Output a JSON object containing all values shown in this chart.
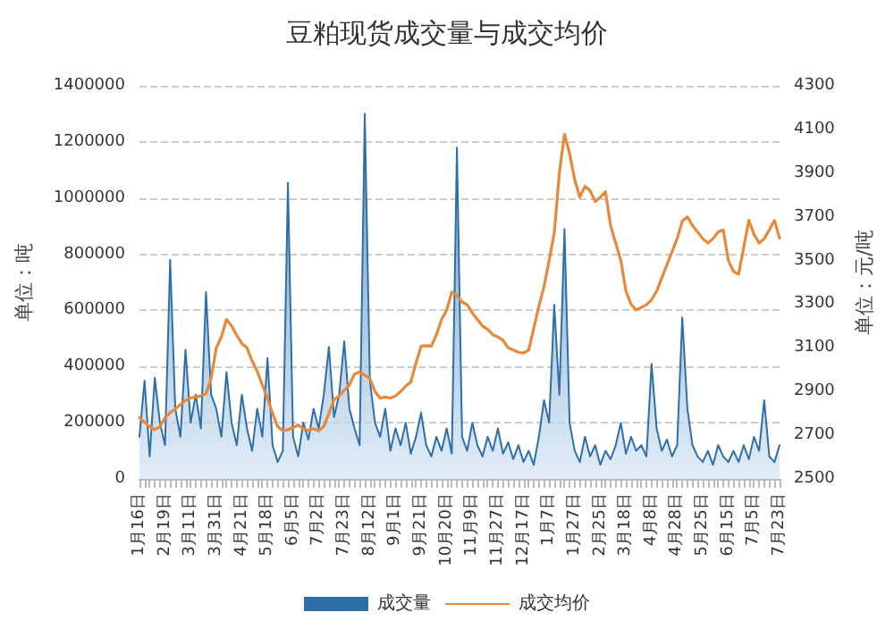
{
  "chart_data": {
    "type": "area",
    "title": "豆粕现货成交量与成交均价",
    "ylabel": "单位：吨",
    "y2label": "单位：元/吨",
    "categories": [
      "1月16日",
      null,
      null,
      null,
      null,
      "2月19日",
      null,
      null,
      null,
      null,
      "3月11日",
      null,
      null,
      null,
      null,
      "3月31日",
      null,
      null,
      null,
      null,
      "4月21日",
      null,
      null,
      null,
      null,
      "5月18日",
      null,
      null,
      null,
      null,
      "6月5日",
      null,
      null,
      null,
      null,
      "7月2日",
      null,
      null,
      null,
      null,
      "7月23日",
      null,
      null,
      null,
      null,
      "8月12日",
      null,
      null,
      null,
      null,
      "9月1日",
      null,
      null,
      null,
      null,
      "9月21日",
      null,
      null,
      null,
      null,
      "10月20日",
      null,
      null,
      null,
      null,
      "11月9日",
      null,
      null,
      null,
      null,
      "11月27日",
      null,
      null,
      null,
      null,
      "12月17日",
      null,
      null,
      null,
      null,
      "1月7日",
      null,
      null,
      null,
      null,
      "1月27日",
      null,
      null,
      null,
      null,
      "2月25日",
      null,
      null,
      null,
      null,
      "3月18日",
      null,
      null,
      null,
      null,
      "4月8日",
      null,
      null,
      null,
      null,
      "4月28日",
      null,
      null,
      null,
      null,
      "5月25日",
      null,
      null,
      null,
      null,
      "6月15日",
      null,
      null,
      null,
      null,
      "7月5日",
      null,
      null,
      null,
      null,
      "7月23日"
    ],
    "series": [
      {
        "name": "成交量",
        "color": "#2f6fa8",
        "values": [
          150000,
          350000,
          80000,
          360000,
          200000,
          120000,
          780000,
          250000,
          150000,
          460000,
          200000,
          300000,
          180000,
          665000,
          300000,
          250000,
          150000,
          380000,
          200000,
          120000,
          300000,
          180000,
          100000,
          250000,
          150000,
          430000,
          120000,
          60000,
          100000,
          1055000,
          150000,
          80000,
          200000,
          140000,
          250000,
          180000,
          300000,
          470000,
          220000,
          300000,
          490000,
          250000,
          180000,
          120000,
          1300000,
          350000,
          200000,
          150000,
          250000,
          100000,
          180000,
          120000,
          200000,
          90000,
          150000,
          236000,
          120000,
          80000,
          150000,
          100000,
          180000,
          90000,
          1180000,
          150000,
          100000,
          200000,
          120000,
          80000,
          150000,
          100000,
          180000,
          90000,
          130000,
          70000,
          120000,
          60000,
          100000,
          50000,
          150000,
          280000,
          200000,
          620000,
          300000,
          890000,
          200000,
          100000,
          60000,
          150000,
          80000,
          120000,
          50000,
          100000,
          70000,
          120000,
          200000,
          90000,
          150000,
          100000,
          120000,
          80000,
          410000,
          180000,
          100000,
          140000,
          80000,
          120000,
          575000,
          250000,
          120000,
          80000,
          60000,
          100000,
          50000,
          120000,
          80000,
          60000,
          100000,
          60000,
          120000,
          70000,
          150000,
          100000,
          280000,
          80000,
          60000,
          120000
        ]
      },
      {
        "name": "成交均价",
        "type": "line",
        "axis": "y2",
        "color": "#e8883a",
        "values": [
          2780,
          2760,
          2740,
          2725,
          2740,
          2780,
          2804,
          2820,
          2840,
          2860,
          2870,
          2875,
          2880,
          2890,
          2960,
          3100,
          3150,
          3230,
          3200,
          3158,
          3120,
          3100,
          3040,
          2993,
          2930,
          2870,
          2800,
          2740,
          2720,
          2725,
          2735,
          2747,
          2730,
          2722,
          2730,
          2720,
          2740,
          2800,
          2862,
          2880,
          2905,
          2930,
          2980,
          2990,
          2975,
          2960,
          2900,
          2870,
          2875,
          2870,
          2880,
          2900,
          2925,
          2944,
          3030,
          3108,
          3110,
          3108,
          3160,
          3230,
          3273,
          3355,
          3340,
          3310,
          3297,
          3260,
          3230,
          3200,
          3185,
          3160,
          3150,
          3135,
          3100,
          3090,
          3080,
          3076,
          3090,
          3190,
          3290,
          3380,
          3500,
          3626,
          3900,
          4078,
          3990,
          3870,
          3790,
          3840,
          3820,
          3770,
          3790,
          3815,
          3660,
          3580,
          3500,
          3360,
          3300,
          3273,
          3285,
          3297,
          3320,
          3360,
          3420,
          3480,
          3540,
          3600,
          3680,
          3700,
          3660,
          3630,
          3600,
          3580,
          3600,
          3630,
          3640,
          3500,
          3450,
          3437,
          3560,
          3684,
          3620,
          3580,
          3600,
          3640,
          3684,
          3602
        ]
      }
    ],
    "ylim": [
      0,
      1400000
    ],
    "yticks": [
      0,
      200000,
      400000,
      600000,
      800000,
      1000000,
      1200000,
      1400000
    ],
    "y2lim": [
      2500,
      4300
    ],
    "y2ticks": [
      2500,
      2700,
      2900,
      3100,
      3300,
      3500,
      3700,
      3900,
      4100,
      4300
    ],
    "grid": "y",
    "legend": "bottom",
    "marker": "none",
    "line_style": "solid"
  }
}
